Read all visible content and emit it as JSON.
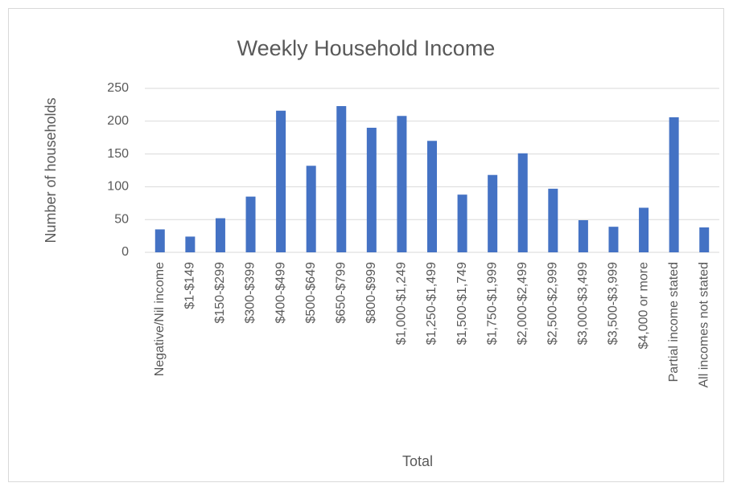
{
  "chart_data": {
    "type": "bar",
    "title": "Weekly Household Income",
    "x_label": "Total",
    "y_label": "Number of households",
    "categories": [
      "Negative/Nil income",
      "$1-$149",
      "$150-$299",
      "$300-$399",
      "$400-$499",
      "$500-$649",
      "$650-$799",
      "$800-$999",
      "$1,000-$1,249",
      "$1,250-$1,499",
      "$1,500-$1,749",
      "$1,750-$1,999",
      "$2,000-$2,499",
      "$2,500-$2,999",
      "$3,000-$3,499",
      "$3,500-$3,999",
      "$4,000 or more",
      "Partial income stated",
      "All incomes not stated"
    ],
    "values": [
      35,
      24,
      52,
      85,
      216,
      132,
      223,
      190,
      208,
      170,
      88,
      118,
      151,
      97,
      49,
      39,
      68,
      206,
      38
    ],
    "color": "#4472c4",
    "ylim": [
      0,
      250
    ],
    "yticks": [
      0,
      50,
      100,
      150,
      200,
      250
    ],
    "grid": true
  }
}
